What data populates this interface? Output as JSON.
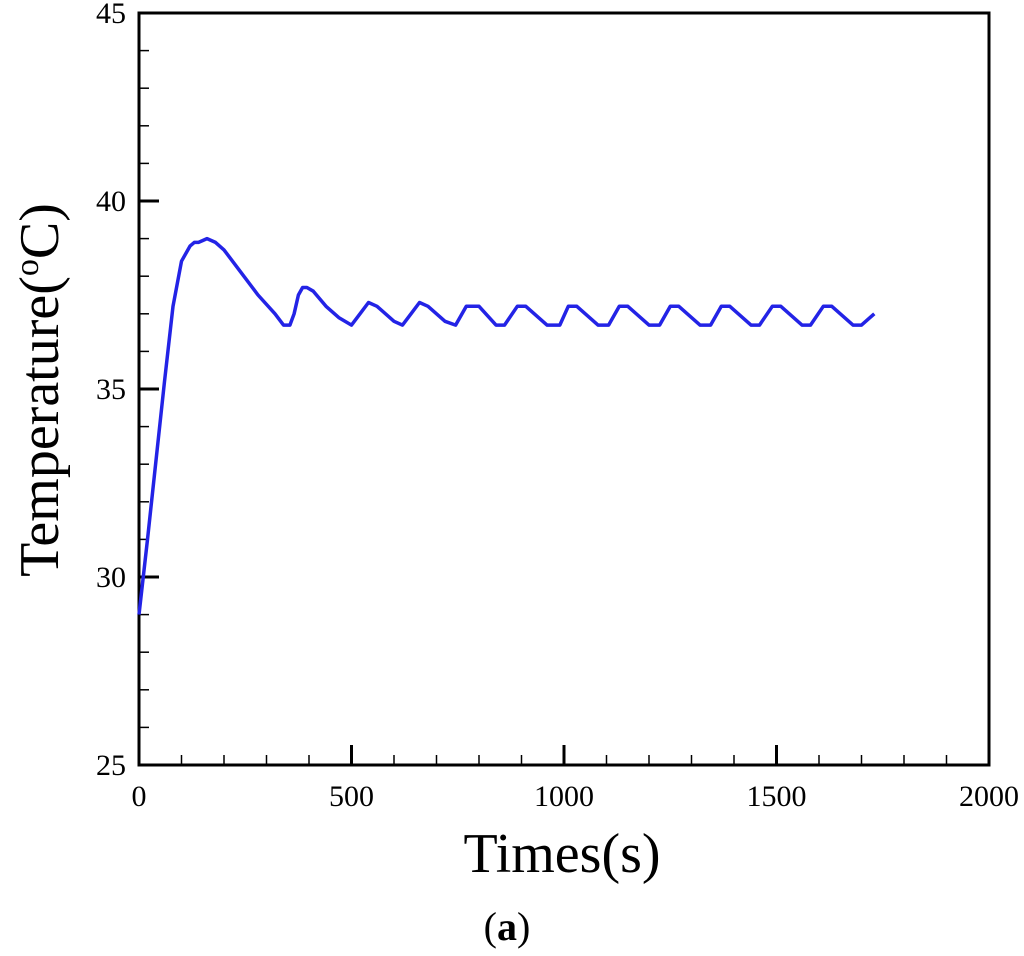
{
  "chart_data": {
    "type": "line",
    "title": "",
    "xlabel": "Times(s)",
    "ylabel_main": "Temperature(",
    "ylabel_sup": "o",
    "ylabel_end": "C)",
    "panel_label_open": "(",
    "panel_label_letter": "a",
    "panel_label_close": ")",
    "xlim": [
      0,
      2000
    ],
    "ylim": [
      25,
      45
    ],
    "x_ticks": [
      0,
      500,
      1000,
      1500,
      2000
    ],
    "x_tick_labels": [
      "0",
      "500",
      "1000",
      "1500",
      "2000"
    ],
    "y_ticks": [
      25,
      30,
      35,
      40,
      45
    ],
    "y_tick_labels": [
      "25",
      "30",
      "35",
      "40",
      "45"
    ],
    "grid": false,
    "line_color": "#2323e6",
    "series": [
      {
        "x": [
          0,
          20,
          40,
          60,
          80,
          100,
          120,
          130,
          140,
          150,
          160,
          180,
          200,
          240,
          280,
          320,
          340,
          355,
          365,
          375,
          385,
          395,
          410,
          440,
          470,
          500,
          520,
          540,
          560,
          600,
          620,
          640,
          660,
          680,
          720,
          745,
          770,
          800,
          840,
          860,
          890,
          910,
          960,
          990,
          1010,
          1030,
          1080,
          1105,
          1130,
          1150,
          1200,
          1225,
          1250,
          1270,
          1320,
          1345,
          1370,
          1390,
          1440,
          1460,
          1490,
          1510,
          1560,
          1580,
          1610,
          1630,
          1680,
          1700,
          1720,
          1730
        ],
        "y": [
          29.0,
          31.0,
          33.1,
          35.2,
          37.2,
          38.4,
          38.8,
          38.9,
          38.9,
          38.95,
          39.0,
          38.9,
          38.7,
          38.1,
          37.5,
          37.0,
          36.7,
          36.7,
          37.0,
          37.5,
          37.7,
          37.7,
          37.6,
          37.2,
          36.9,
          36.7,
          37.0,
          37.3,
          37.2,
          36.8,
          36.7,
          37.0,
          37.3,
          37.2,
          36.8,
          36.7,
          37.2,
          37.2,
          36.7,
          36.7,
          37.2,
          37.2,
          36.7,
          36.7,
          37.2,
          37.2,
          36.7,
          36.7,
          37.2,
          37.2,
          36.7,
          36.7,
          37.2,
          37.2,
          36.7,
          36.7,
          37.2,
          37.2,
          36.7,
          36.7,
          37.2,
          37.2,
          36.7,
          36.7,
          37.2,
          37.2,
          36.7,
          36.7,
          36.9,
          37.0
        ]
      }
    ]
  }
}
